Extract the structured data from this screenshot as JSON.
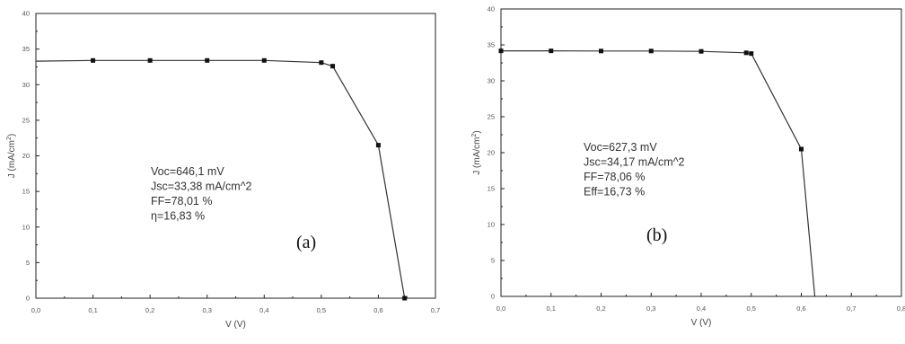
{
  "chart_data": [
    {
      "type": "line",
      "panel_label": "(a)",
      "xlabel": "V (V)",
      "ylabel": "J (mA/cm",
      "ylabel_sup": "2",
      "ylabel_close": ")",
      "xlim": [
        0.0,
        0.7
      ],
      "ylim": [
        0,
        40
      ],
      "x_ticks": [
        "0,0",
        "0,1",
        "0,2",
        "0,3",
        "0,4",
        "0,5",
        "0,6",
        "0,7"
      ],
      "y_ticks": [
        "0",
        "5",
        "10",
        "15",
        "20",
        "25",
        "30",
        "35",
        "40"
      ],
      "series": [
        {
          "x": [
            0.0,
            0.1,
            0.2,
            0.3,
            0.4,
            0.5,
            0.52,
            0.6,
            0.646
          ],
          "y": [
            33.3,
            33.4,
            33.4,
            33.4,
            33.4,
            33.1,
            32.6,
            21.5,
            0.0
          ],
          "markers": [
            false,
            true,
            true,
            true,
            true,
            true,
            true,
            true,
            true
          ]
        }
      ],
      "annotations": [
        "Voc=646,1 mV",
        "Jsc=33,38 mA/cm^2",
        "FF=78,01 %",
        "η=16,83 %"
      ],
      "grid": false
    },
    {
      "type": "line",
      "panel_label": "(b)",
      "xlabel": "V (V)",
      "ylabel": "J (mA/cm",
      "ylabel_sup": "2",
      "ylabel_close": ")",
      "xlim": [
        0.0,
        0.8
      ],
      "ylim": [
        0,
        40
      ],
      "x_ticks": [
        "0,0",
        "0,1",
        "0,2",
        "0,3",
        "0,4",
        "0,5",
        "0,6",
        "0,7",
        "0,8"
      ],
      "y_ticks": [
        "0",
        "5",
        "10",
        "15",
        "20",
        "25",
        "30",
        "35",
        "40"
      ],
      "series": [
        {
          "x": [
            0.0,
            0.1,
            0.2,
            0.3,
            0.4,
            0.49,
            0.5,
            0.6,
            0.627
          ],
          "y": [
            34.17,
            34.17,
            34.15,
            34.15,
            34.1,
            33.9,
            33.8,
            20.5,
            0.0
          ],
          "markers": [
            true,
            true,
            true,
            true,
            true,
            true,
            true,
            true,
            false
          ]
        }
      ],
      "annotations": [
        "Voc=627,3 mV",
        "Jsc=34,17 mA/cm^2",
        "FF=78,06 %",
        "Eff=16,73 %"
      ],
      "grid": false
    }
  ]
}
